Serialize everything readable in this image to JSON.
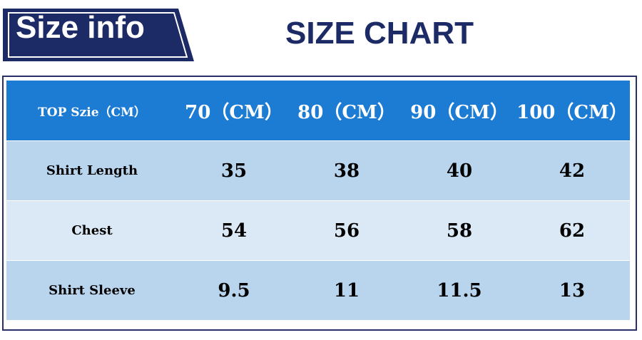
{
  "header": {
    "badge": "Size info",
    "title": "SIZE CHART"
  },
  "table": {
    "columns": [
      "TOP Szie（CM）",
      "70（CM）",
      "80（CM）",
      "90（CM）",
      "100（CM）"
    ],
    "rows": [
      [
        "Shirt Length",
        35,
        38,
        40,
        42
      ],
      [
        "Chest",
        54,
        56,
        58,
        62
      ],
      [
        "Shirt Sleeve",
        9.5,
        11,
        11.5,
        13
      ]
    ]
  }
}
